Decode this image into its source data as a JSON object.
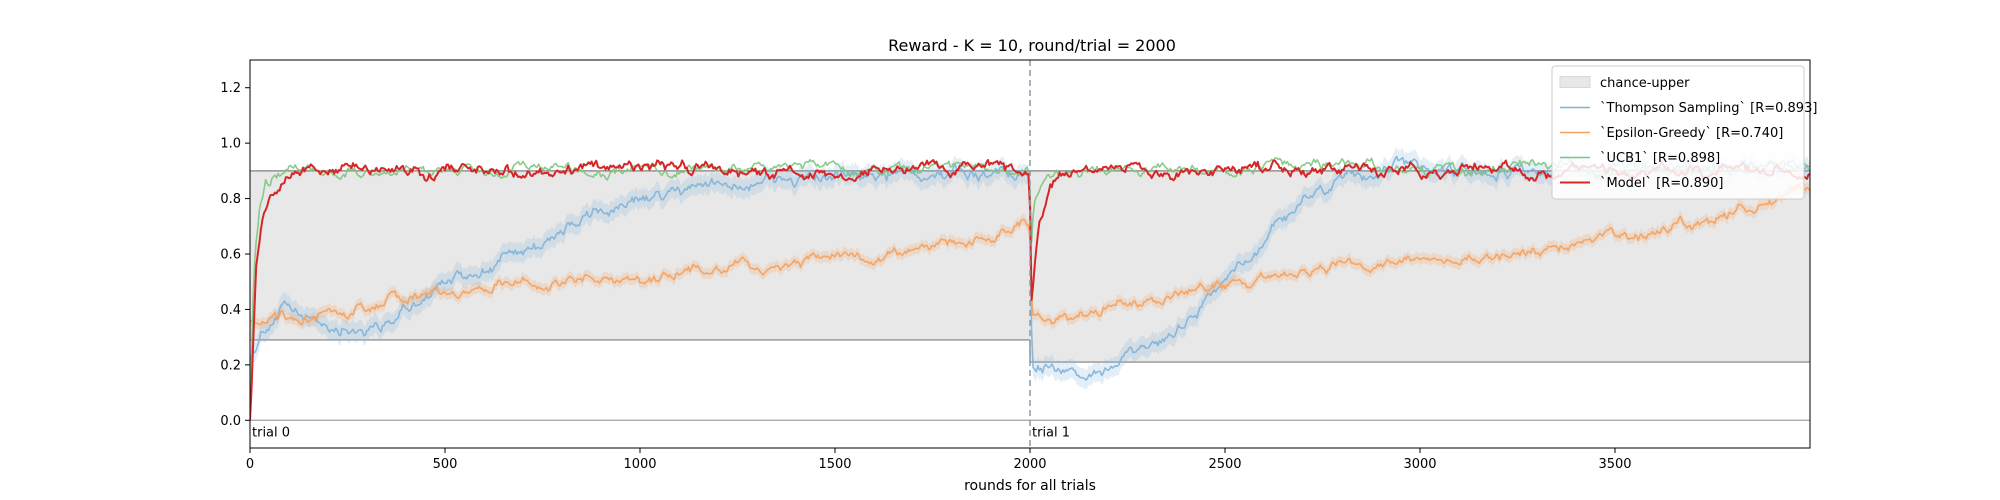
{
  "chart_data": {
    "type": "line",
    "title": "Reward - K = 10, round/trial = 2000",
    "xlabel": "rounds for all trials",
    "ylabel": "",
    "xlim": [
      0,
      4000
    ],
    "ylim": [
      -0.1,
      1.3
    ],
    "xticks": [
      0,
      500,
      1000,
      1500,
      2000,
      2500,
      3000,
      3500
    ],
    "yticks": [
      0.0,
      0.2,
      0.4,
      0.6,
      0.8,
      1.0,
      1.2
    ],
    "grid": false,
    "legend_position": "top-right",
    "trial_boundary": 2000,
    "trial_labels": [
      {
        "text": "trial 0",
        "x": 0
      },
      {
        "text": "trial 1",
        "x": 2000
      }
    ],
    "chance_band": {
      "name": "chance-upper",
      "color": "#e8e8e8",
      "segments": [
        {
          "x0": 0,
          "x1": 2000,
          "lower": 0.29,
          "upper": 0.9
        },
        {
          "x0": 2000,
          "x1": 4000,
          "lower": 0.21,
          "upper": 0.9
        }
      ]
    },
    "series": [
      {
        "name": "`Thompson Sampling` [R=0.893]",
        "color": "#7fb2d9",
        "x": [
          0,
          30,
          80,
          150,
          250,
          350,
          450,
          550,
          650,
          750,
          850,
          950,
          1050,
          1150,
          1250,
          1350,
          1450,
          1550,
          1650,
          1750,
          1850,
          1950,
          1999,
          2005,
          2050,
          2100,
          2150,
          2200,
          2250,
          2300,
          2350,
          2400,
          2450,
          2500,
          2550,
          2600,
          2650,
          2700,
          2750,
          2800,
          2850,
          2900,
          2950,
          3000,
          3100,
          3200,
          3300,
          3400,
          3500,
          3600,
          3700,
          3800,
          3900,
          4000
        ],
        "values": [
          0.22,
          0.33,
          0.4,
          0.36,
          0.33,
          0.35,
          0.45,
          0.52,
          0.58,
          0.64,
          0.72,
          0.77,
          0.8,
          0.84,
          0.86,
          0.87,
          0.88,
          0.87,
          0.89,
          0.9,
          0.89,
          0.9,
          0.89,
          0.21,
          0.19,
          0.18,
          0.16,
          0.18,
          0.21,
          0.24,
          0.29,
          0.36,
          0.43,
          0.5,
          0.58,
          0.65,
          0.72,
          0.78,
          0.83,
          0.86,
          0.88,
          0.89,
          0.9,
          0.91,
          0.9,
          0.91,
          0.9,
          0.91,
          0.91,
          0.9,
          0.91,
          0.91,
          0.92,
          0.92
        ]
      },
      {
        "name": "`Epsilon-Greedy` [R=0.740]",
        "color": "#f4a15d",
        "x": [
          0,
          50,
          150,
          250,
          350,
          450,
          550,
          650,
          750,
          850,
          950,
          1050,
          1150,
          1250,
          1350,
          1450,
          1550,
          1650,
          1750,
          1850,
          1950,
          1999,
          2005,
          2050,
          2100,
          2150,
          2200,
          2300,
          2400,
          2500,
          2600,
          2700,
          2800,
          2900,
          3000,
          3100,
          3200,
          3300,
          3400,
          3500,
          3600,
          3700,
          3800,
          3900,
          4000
        ],
        "values": [
          0.36,
          0.38,
          0.37,
          0.39,
          0.43,
          0.45,
          0.46,
          0.48,
          0.49,
          0.5,
          0.5,
          0.52,
          0.54,
          0.55,
          0.56,
          0.57,
          0.58,
          0.6,
          0.62,
          0.65,
          0.68,
          0.71,
          0.4,
          0.38,
          0.37,
          0.39,
          0.41,
          0.43,
          0.46,
          0.5,
          0.52,
          0.54,
          0.56,
          0.57,
          0.58,
          0.59,
          0.6,
          0.62,
          0.64,
          0.66,
          0.68,
          0.71,
          0.75,
          0.79,
          0.84
        ]
      },
      {
        "name": "`UCB1` [R=0.898]",
        "color": "#7fc47f",
        "x": [
          0,
          10,
          25,
          40,
          60,
          100,
          200,
          300,
          400,
          500,
          600,
          700,
          800,
          900,
          1000,
          1100,
          1200,
          1300,
          1400,
          1500,
          1600,
          1700,
          1800,
          1900,
          1999,
          2003,
          2010,
          2030,
          2060,
          2100,
          2200,
          2300,
          2400,
          2500,
          2600,
          2700,
          2800,
          2900,
          3000,
          3100,
          3200,
          3300,
          3400,
          3500,
          3600,
          3700,
          3800,
          3900,
          4000
        ],
        "values": [
          0.0,
          0.55,
          0.78,
          0.86,
          0.88,
          0.89,
          0.9,
          0.89,
          0.9,
          0.9,
          0.89,
          0.91,
          0.9,
          0.9,
          0.91,
          0.9,
          0.91,
          0.9,
          0.91,
          0.91,
          0.9,
          0.91,
          0.9,
          0.91,
          0.9,
          0.62,
          0.78,
          0.86,
          0.89,
          0.9,
          0.9,
          0.91,
          0.9,
          0.9,
          0.91,
          0.92,
          0.93,
          0.92,
          0.91,
          0.9,
          0.91,
          0.92,
          0.91,
          0.9,
          0.91,
          0.9,
          0.91,
          0.92,
          0.91
        ]
      },
      {
        "name": "`Model` [R=0.890]",
        "color": "#d62728",
        "x": [
          0,
          5,
          15,
          30,
          50,
          80,
          120,
          200,
          300,
          400,
          450,
          500,
          600,
          700,
          800,
          900,
          1000,
          1100,
          1200,
          1300,
          1400,
          1500,
          1600,
          1700,
          1800,
          1900,
          1999,
          2003,
          2010,
          2025,
          2050,
          2080,
          2150,
          2250,
          2350,
          2450,
          2550,
          2650,
          2750,
          2850,
          2950,
          3050,
          3150,
          3250,
          3350,
          3450,
          3550,
          3650,
          3750,
          3850,
          3950,
          4000
        ],
        "values": [
          0.0,
          0.15,
          0.55,
          0.72,
          0.8,
          0.86,
          0.9,
          0.91,
          0.9,
          0.91,
          0.86,
          0.9,
          0.91,
          0.88,
          0.9,
          0.91,
          0.9,
          0.92,
          0.91,
          0.9,
          0.91,
          0.89,
          0.9,
          0.92,
          0.9,
          0.91,
          0.89,
          0.42,
          0.55,
          0.72,
          0.84,
          0.88,
          0.9,
          0.91,
          0.89,
          0.9,
          0.91,
          0.9,
          0.92,
          0.9,
          0.91,
          0.9,
          0.91,
          0.9,
          0.89,
          0.91,
          0.9,
          0.91,
          0.89,
          0.9,
          0.91,
          0.9
        ]
      }
    ]
  }
}
